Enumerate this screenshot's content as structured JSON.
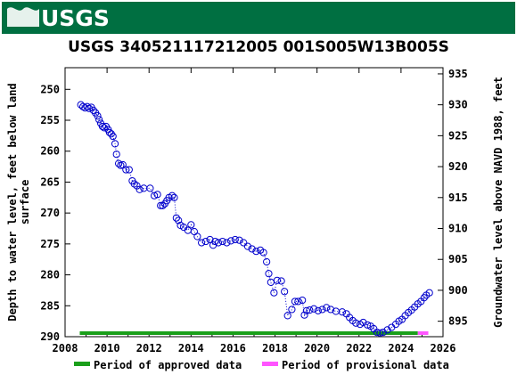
{
  "header": {
    "logo_text": "USGS",
    "bar_color": "#006f41"
  },
  "chart_data": {
    "type": "scatter",
    "title": "USGS 340521117212005 001S005W13B005S",
    "ylabel_left_line1": "Depth to water level, feet below land",
    "ylabel_left_line2": "surface",
    "ylabel_right": "Groundwater level above NAVD 1988, feet",
    "xlim": [
      2008,
      2026
    ],
    "ylim_left": [
      290,
      246.5
    ],
    "ylim_right": [
      892.5,
      936
    ],
    "x_ticks": [
      "2008",
      "2010",
      "2012",
      "2014",
      "2016",
      "2018",
      "2020",
      "2022",
      "2024",
      "2026"
    ],
    "y_ticks_left": [
      "250",
      "255",
      "260",
      "265",
      "270",
      "275",
      "280",
      "285",
      "290"
    ],
    "y_ticks_right": [
      "935",
      "930",
      "925",
      "920",
      "915",
      "910",
      "905",
      "900",
      "895"
    ],
    "marker_color": "#0000cc",
    "approved_color": "#1a9f1a",
    "provisional_color": "#ff55ff",
    "approved_period": [
      2008.7,
      2024.8
    ],
    "provisional_period": [
      2024.8,
      2025.3
    ],
    "series": [
      {
        "values": [
          [
            2008.75,
            252.5
          ],
          [
            2008.85,
            252.8
          ],
          [
            2008.95,
            253.0
          ],
          [
            2009.05,
            252.8
          ],
          [
            2009.15,
            253.1
          ],
          [
            2009.25,
            252.9
          ],
          [
            2009.35,
            253.4
          ],
          [
            2009.45,
            253.8
          ],
          [
            2009.55,
            254.3
          ],
          [
            2009.62,
            254.9
          ],
          [
            2009.7,
            255.5
          ],
          [
            2009.78,
            256.0
          ],
          [
            2009.86,
            256.2
          ],
          [
            2009.95,
            256.0
          ],
          [
            2010.05,
            256.5
          ],
          [
            2010.12,
            257.0
          ],
          [
            2010.2,
            257.2
          ],
          [
            2010.28,
            257.6
          ],
          [
            2010.38,
            258.8
          ],
          [
            2010.45,
            260.5
          ],
          [
            2010.55,
            262.0
          ],
          [
            2010.65,
            262.3
          ],
          [
            2010.75,
            262.2
          ],
          [
            2010.9,
            263.0
          ],
          [
            2011.05,
            263.0
          ],
          [
            2011.2,
            264.8
          ],
          [
            2011.3,
            265.3
          ],
          [
            2011.42,
            265.6
          ],
          [
            2011.55,
            266.2
          ],
          [
            2011.75,
            266.0
          ],
          [
            2012.05,
            266.0
          ],
          [
            2012.25,
            267.2
          ],
          [
            2012.4,
            267.0
          ],
          [
            2012.55,
            268.8
          ],
          [
            2012.65,
            268.8
          ],
          [
            2012.75,
            268.5
          ],
          [
            2012.85,
            268.0
          ],
          [
            2012.95,
            267.5
          ],
          [
            2013.1,
            267.2
          ],
          [
            2013.2,
            267.5
          ],
          [
            2013.3,
            270.8
          ],
          [
            2013.4,
            271.2
          ],
          [
            2013.5,
            272.0
          ],
          [
            2013.65,
            272.3
          ],
          [
            2013.85,
            272.8
          ],
          [
            2014.0,
            271.9
          ],
          [
            2014.15,
            273.0
          ],
          [
            2014.3,
            273.8
          ],
          [
            2014.5,
            274.8
          ],
          [
            2014.7,
            274.6
          ],
          [
            2014.9,
            274.3
          ],
          [
            2015.05,
            275.2
          ],
          [
            2015.15,
            274.6
          ],
          [
            2015.3,
            274.8
          ],
          [
            2015.5,
            274.6
          ],
          [
            2015.7,
            274.8
          ],
          [
            2015.9,
            274.5
          ],
          [
            2016.1,
            274.3
          ],
          [
            2016.3,
            274.4
          ],
          [
            2016.5,
            274.8
          ],
          [
            2016.7,
            275.4
          ],
          [
            2016.9,
            275.8
          ],
          [
            2017.1,
            276.2
          ],
          [
            2017.3,
            276.0
          ],
          [
            2017.45,
            276.4
          ],
          [
            2017.6,
            277.9
          ],
          [
            2017.7,
            279.8
          ],
          [
            2017.8,
            281.2
          ],
          [
            2017.95,
            282.9
          ],
          [
            2018.1,
            280.9
          ],
          [
            2018.3,
            281.0
          ],
          [
            2018.45,
            282.7
          ],
          [
            2018.6,
            286.6
          ],
          [
            2018.8,
            285.6
          ],
          [
            2018.95,
            284.3
          ],
          [
            2019.1,
            284.3
          ],
          [
            2019.3,
            284.1
          ],
          [
            2019.4,
            286.5
          ],
          [
            2019.5,
            285.8
          ],
          [
            2019.65,
            285.7
          ],
          [
            2019.85,
            285.5
          ],
          [
            2020.05,
            285.8
          ],
          [
            2020.25,
            285.6
          ],
          [
            2020.45,
            285.3
          ],
          [
            2020.65,
            285.6
          ],
          [
            2020.9,
            285.9
          ],
          [
            2021.2,
            286.0
          ],
          [
            2021.4,
            286.3
          ],
          [
            2021.55,
            286.9
          ],
          [
            2021.7,
            287.4
          ],
          [
            2021.85,
            287.8
          ],
          [
            2022.05,
            288.0
          ],
          [
            2022.2,
            287.7
          ],
          [
            2022.4,
            288.1
          ],
          [
            2022.55,
            288.3
          ],
          [
            2022.7,
            288.7
          ],
          [
            2022.85,
            289.3
          ],
          [
            2023.0,
            289.4
          ],
          [
            2023.15,
            289.3
          ],
          [
            2023.35,
            288.9
          ],
          [
            2023.55,
            288.5
          ],
          [
            2023.75,
            288.0
          ],
          [
            2023.9,
            287.5
          ],
          [
            2024.05,
            287.2
          ],
          [
            2024.2,
            286.6
          ],
          [
            2024.35,
            286.1
          ],
          [
            2024.5,
            285.7
          ],
          [
            2024.65,
            285.2
          ],
          [
            2024.8,
            284.7
          ],
          [
            2024.95,
            284.3
          ],
          [
            2025.1,
            283.7
          ],
          [
            2025.2,
            283.3
          ],
          [
            2025.35,
            282.9
          ]
        ]
      }
    ],
    "legend": {
      "approved_label": "Period of approved data",
      "provisional_label": "Period of provisional data"
    }
  }
}
